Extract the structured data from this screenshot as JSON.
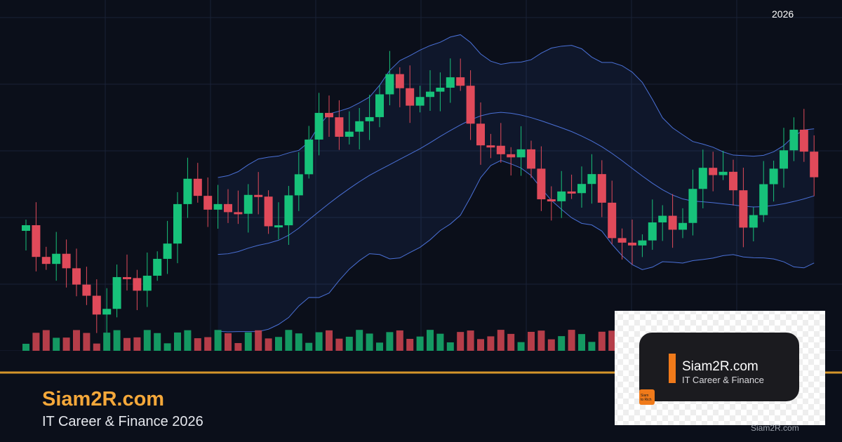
{
  "header": {
    "year": "2026"
  },
  "brand": {
    "title": "Siam2R.com",
    "subtitle": "IT Career & Finance 2026"
  },
  "logo_card": {
    "title": "Siam2R.com",
    "subtitle": "IT Career & Finance",
    "badge": [
      "Siam",
      "to Rich"
    ]
  },
  "watermark": "Siam2R.com"
}
